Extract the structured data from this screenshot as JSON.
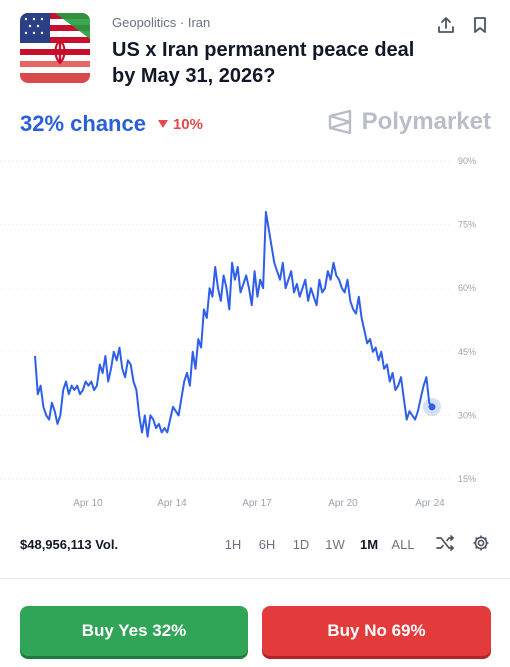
{
  "market": {
    "category": "Geopolitics · Iran",
    "title": "US x Iran permanent peace deal by May 31, 2026?",
    "chance": "32% chance",
    "change": "10%",
    "brand": "Polymarket"
  },
  "stats": {
    "volume": "$48,956,113 Vol."
  },
  "ranges": [
    "1H",
    "6H",
    "1D",
    "1W",
    "1M",
    "ALL"
  ],
  "active_range": "1M",
  "actions": {
    "yes": "Buy Yes 32%",
    "no": "Buy No 69%"
  },
  "colors": {
    "line": "#2f5fe8",
    "accent": "#2b5fd9",
    "yes": "#30a457",
    "no": "#e33b3b",
    "down": "#e5484d"
  },
  "chart_data": {
    "type": "line",
    "x_ticks": [
      "Apr 10",
      "Apr 14",
      "Apr 17",
      "Apr 20",
      "Apr 24"
    ],
    "y_ticks": [
      "90%",
      "75%",
      "60%",
      "45%",
      "30%",
      "15%"
    ],
    "ylim": [
      15,
      90
    ],
    "series": [
      {
        "values": [
          44,
          35,
          37,
          32,
          30,
          29,
          33,
          31,
          28,
          30,
          36,
          38,
          35,
          37,
          36,
          37,
          35,
          36,
          38,
          37,
          38,
          36,
          37,
          42,
          40,
          44,
          38,
          41,
          45,
          43,
          46,
          41,
          39,
          43,
          42,
          38,
          36,
          30,
          26,
          30,
          25,
          30,
          29,
          27,
          28,
          26,
          27,
          26,
          29,
          32,
          31,
          30,
          34,
          38,
          40,
          37,
          45,
          41,
          48,
          46,
          55,
          53,
          60,
          58,
          65,
          60,
          57,
          63,
          60,
          55,
          66,
          62,
          65,
          59,
          61,
          63,
          60,
          56,
          64,
          58,
          62,
          60,
          78,
          74,
          70,
          66,
          64,
          62,
          66,
          60,
          62,
          64,
          59,
          61,
          58,
          60,
          62,
          57,
          60,
          58,
          56,
          62,
          59,
          60,
          64,
          62,
          66,
          63,
          62,
          60,
          59,
          62,
          57,
          55,
          54,
          58,
          53,
          50,
          47,
          48,
          45,
          46,
          43,
          45,
          41,
          42,
          38,
          40,
          36,
          37,
          39,
          34,
          29,
          31,
          30,
          29,
          31,
          34,
          37,
          39,
          33,
          32
        ]
      }
    ]
  }
}
